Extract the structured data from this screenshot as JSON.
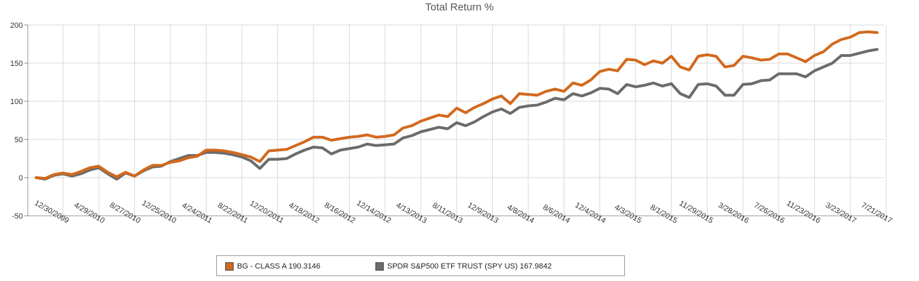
{
  "chart_data": {
    "type": "line",
    "title": "Total Return %",
    "xlabel": "",
    "ylabel": "",
    "ylim": [
      -50,
      200
    ],
    "yticks": [
      "200",
      "150",
      "100",
      "50",
      "0",
      "-50"
    ],
    "x_tick_labels": [
      "12/30/2009",
      "4/29/2010",
      "8/27/2010",
      "12/25/2010",
      "4/24/2011",
      "8/22/2011",
      "12/20/2011",
      "4/18/2012",
      "8/16/2012",
      "12/14/2012",
      "4/13/2013",
      "8/11/2013",
      "12/9/2013",
      "4/8/2014",
      "8/6/2014",
      "12/4/2014",
      "4/3/2015",
      "8/1/2015",
      "11/29/2015",
      "3/28/2016",
      "7/26/2016",
      "11/23/2016",
      "3/23/2017",
      "7/21/2017"
    ],
    "x_tick_indices": [
      3,
      7,
      11,
      15,
      19,
      23,
      27,
      31,
      35,
      39,
      43,
      47,
      51,
      55,
      59,
      63,
      67,
      71,
      75,
      79,
      83,
      87,
      91,
      95
    ],
    "grid": true,
    "legend_position": "bottom-center",
    "series": [
      {
        "name": "BG - CLASS A 190.3146",
        "color": "#d2691e",
        "values": [
          0,
          -1,
          4,
          6,
          4,
          8,
          13,
          15,
          7,
          1,
          7,
          2,
          10,
          16,
          16,
          20,
          22,
          26,
          28,
          36,
          36,
          35,
          33,
          30,
          27,
          21,
          35,
          36,
          37,
          42,
          47,
          53,
          53,
          49,
          51,
          53,
          54,
          56,
          53,
          54,
          56,
          65,
          68,
          74,
          78,
          82,
          80,
          91,
          85,
          92,
          97,
          103,
          107,
          97,
          110,
          109,
          108,
          113,
          116,
          113,
          124,
          121,
          128,
          139,
          142,
          140,
          155,
          154,
          148,
          153,
          150,
          159,
          145,
          141,
          159,
          161,
          159,
          145,
          147,
          159,
          157,
          154,
          155,
          162,
          162,
          157,
          152,
          160,
          165,
          175,
          181,
          184,
          190,
          191,
          190
        ]
      },
      {
        "name": "SPDR S&P500 ETF TRUST (SPY US) 167.9842",
        "color": "#6b6b6b",
        "values": [
          0,
          -2,
          3,
          5,
          2,
          5,
          10,
          13,
          5,
          -2,
          6,
          2,
          9,
          14,
          15,
          21,
          25,
          29,
          29,
          33,
          33,
          32,
          30,
          27,
          22,
          12,
          24,
          24,
          25,
          31,
          36,
          40,
          39,
          31,
          36,
          38,
          40,
          44,
          42,
          43,
          44,
          52,
          55,
          60,
          63,
          66,
          64,
          72,
          68,
          73,
          80,
          86,
          90,
          84,
          92,
          94,
          95,
          99,
          104,
          102,
          110,
          107,
          111,
          117,
          116,
          110,
          122,
          119,
          121,
          124,
          120,
          123,
          110,
          105,
          122,
          123,
          120,
          108,
          108,
          122,
          123,
          127,
          128,
          136,
          136,
          136,
          132,
          140,
          145,
          150,
          160,
          160,
          163,
          166,
          168
        ]
      }
    ]
  }
}
